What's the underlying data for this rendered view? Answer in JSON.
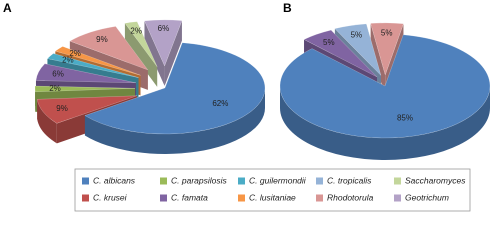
{
  "chart_data": [
    {
      "type": "pie3d",
      "title": "A",
      "categories": [
        "C. albicans",
        "C. krusei",
        "C. parapsilosis",
        "C. famata",
        "C. guilermondii",
        "C. lusitaniae",
        "Rhodotorula",
        "Saccharomyces",
        "Geotrichum"
      ],
      "values": [
        62,
        9,
        2,
        6,
        2,
        2,
        9,
        2,
        6
      ],
      "value_labels": [
        "62%",
        "9%",
        "2%",
        "6%",
        "2%",
        "2%",
        "9%",
        "2%",
        "6%"
      ]
    },
    {
      "type": "pie3d",
      "title": "B",
      "categories": [
        "C. albicans",
        "C. famata",
        "C. tropicalis",
        "Rhodotorula"
      ],
      "values": [
        85,
        5,
        5,
        5
      ],
      "value_labels": [
        "85%",
        "5%",
        "5%",
        "5%"
      ]
    }
  ],
  "legend": [
    {
      "name": "C. albicans",
      "color": "#4f81bd"
    },
    {
      "name": "C. krusei",
      "color": "#c0504d"
    },
    {
      "name": "C. parapsilosis",
      "color": "#9bbb59"
    },
    {
      "name": "C. famata",
      "color": "#8064a2"
    },
    {
      "name": "C. guilermondii",
      "color": "#4bacc6"
    },
    {
      "name": "C. lusitaniae",
      "color": "#f79646"
    },
    {
      "name": "C. tropicalis",
      "color": "#95b3d7"
    },
    {
      "name": "Rhodotorula",
      "color": "#d99694"
    },
    {
      "name": "Saccharomyces",
      "color": "#c3d69b"
    },
    {
      "name": "Geotrichum",
      "color": "#b3a2c7"
    }
  ]
}
